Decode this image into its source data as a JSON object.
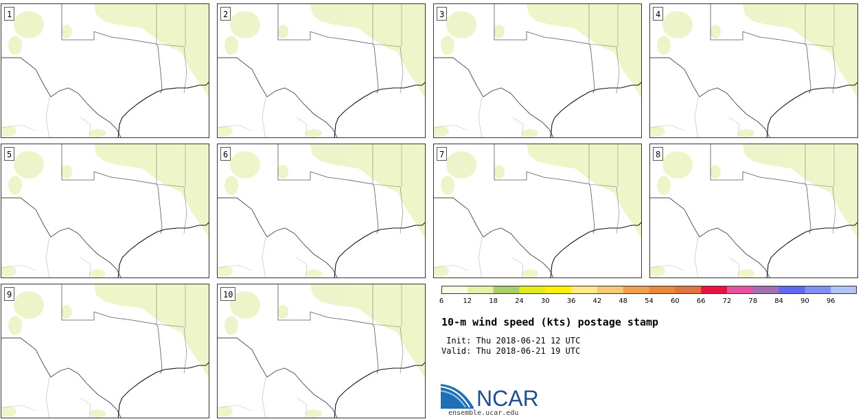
{
  "panels": [
    {
      "label": "1"
    },
    {
      "label": "2"
    },
    {
      "label": "3"
    },
    {
      "label": "4"
    },
    {
      "label": "5"
    },
    {
      "label": "6"
    },
    {
      "label": "7"
    },
    {
      "label": "8"
    },
    {
      "label": "9"
    },
    {
      "label": "10"
    }
  ],
  "colorbar": {
    "ticks": [
      "6",
      "12",
      "18",
      "24",
      "30",
      "36",
      "42",
      "48",
      "54",
      "60",
      "66",
      "72",
      "78",
      "84",
      "90",
      "96"
    ],
    "colors": [
      "#fbfde6",
      "#e4f2a8",
      "#a9cf6a",
      "#e4ec1c",
      "#fff200",
      "#ffea8a",
      "#f8c879",
      "#eda050",
      "#e8893c",
      "#df7440",
      "#ec1040",
      "#e850a0",
      "#a070b4",
      "#6068f0",
      "#8090f0",
      "#b0c4f8"
    ]
  },
  "title": "10-m wind speed (kts) postage stamp",
  "init_line": " Init: Thu 2018-06-21 12 UTC",
  "valid_line": "Valid: Thu 2018-06-21 19 UTC",
  "logo_text": "NCAR",
  "website": "ensemble.ucar.edu"
}
